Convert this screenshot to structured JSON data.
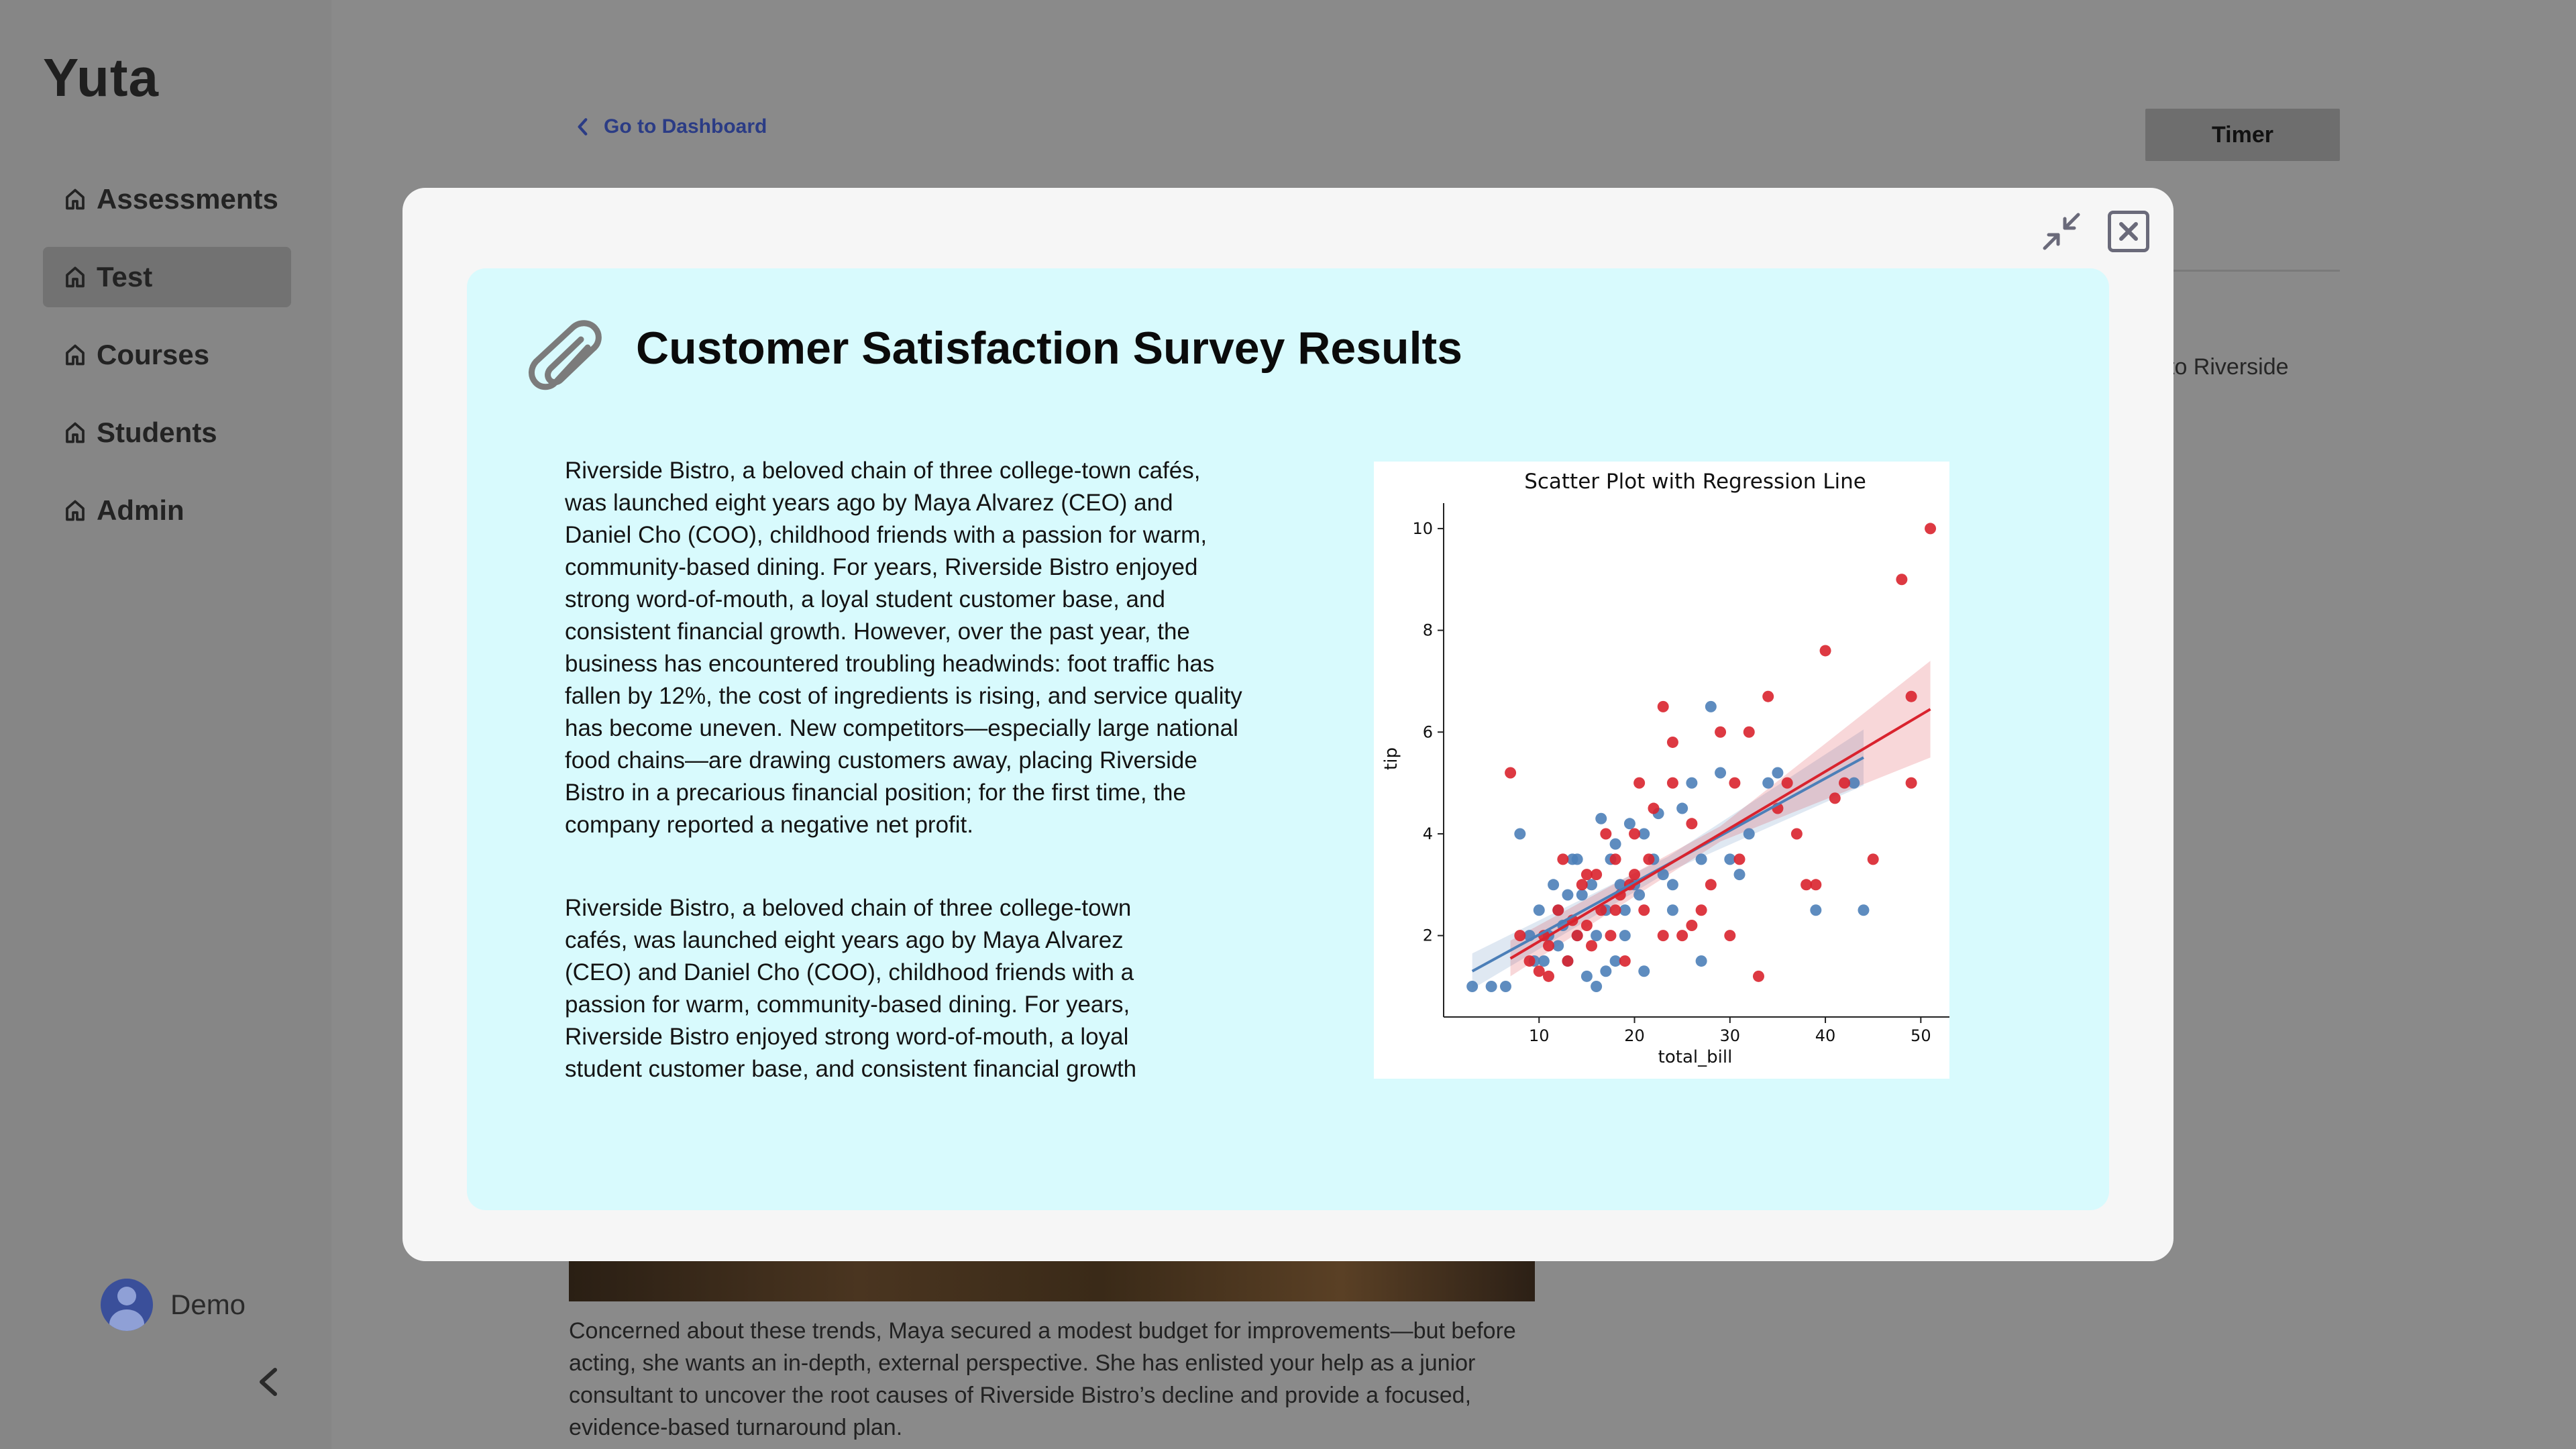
{
  "app": {
    "brand": "Yuta",
    "nav": [
      {
        "label": "Assessments",
        "active": false
      },
      {
        "label": "Test",
        "active": true
      },
      {
        "label": "Courses",
        "active": false
      },
      {
        "label": "Students",
        "active": false
      },
      {
        "label": "Admin",
        "active": false
      }
    ],
    "user_name": "Demo",
    "back_link": "Go to Dashboard",
    "timer_label": "Timer",
    "right_snippet": "to Riverside",
    "bottom_paragraph": "Concerned about these trends, Maya secured a modest budget for improvements—but before acting, she wants an in-depth, external perspective. She has enlisted your help as a junior consultant to uncover the root causes of Riverside Bistro’s decline and provide a focused, evidence-based turnaround plan."
  },
  "modal": {
    "title": "Customer Satisfaction Survey Results",
    "paragraph_1": "Riverside Bistro, a beloved chain of three college-town cafés, was launched eight years ago by Maya Alvarez (CEO) and Daniel Cho (COO), childhood friends with a passion for warm, community-based dining. For years, Riverside Bistro enjoyed strong word-of-mouth, a loyal student customer base, and consistent financial growth. However, over the past year, the business has encountered troubling headwinds: foot traffic has fallen by 12%, the cost of ingredients is rising, and service quality has become uneven. New competitors—especially large national food chains—are drawing customers away, placing Riverside Bistro in a precarious financial position; for the first time, the company reported a negative net profit.",
    "paragraph_2": "Riverside Bistro, a beloved chain of three college-town cafés, was launched eight years ago by Maya Alvarez (CEO) and Daniel Cho (COO), childhood friends with a passion for warm, community-based dining. For years, Riverside Bistro enjoyed strong word-of-mouth, a loyal student customer base, and consistent financial growth"
  },
  "colors": {
    "series_blue": "#4c7fb8",
    "series_red": "#d9232e",
    "card_bg": "#d8fafd"
  },
  "chart_data": {
    "type": "scatter",
    "title": "Scatter Plot with Regression Line",
    "xlabel": "total_bill",
    "ylabel": "tip",
    "xlim": [
      0,
      53
    ],
    "ylim": [
      0.4,
      10.5
    ],
    "xticks": [
      10,
      20,
      30,
      40,
      50
    ],
    "yticks": [
      2,
      4,
      6,
      8,
      10
    ],
    "grid": false,
    "series": [
      {
        "name": "blue",
        "points": [
          [
            3,
            1
          ],
          [
            5,
            1
          ],
          [
            6.5,
            1
          ],
          [
            8,
            4
          ],
          [
            9,
            2
          ],
          [
            10,
            2.5
          ],
          [
            10.5,
            1.5
          ],
          [
            11,
            2
          ],
          [
            11.5,
            3
          ],
          [
            12,
            1.8
          ],
          [
            12.5,
            2.2
          ],
          [
            13,
            1.5
          ],
          [
            13.5,
            3.5
          ],
          [
            14,
            2
          ],
          [
            14.5,
            2.8
          ],
          [
            15,
            1.2
          ],
          [
            15.5,
            3
          ],
          [
            16,
            2
          ],
          [
            16.5,
            4.3
          ],
          [
            17,
            2.5
          ],
          [
            17.5,
            3.5
          ],
          [
            18,
            1.5
          ],
          [
            18.5,
            3
          ],
          [
            19,
            2.5
          ],
          [
            19.5,
            4.2
          ],
          [
            20,
            3
          ],
          [
            20.5,
            2.8
          ],
          [
            21,
            4
          ],
          [
            22,
            3.5
          ],
          [
            23,
            3.2
          ],
          [
            24,
            2.5
          ],
          [
            25,
            4.5
          ],
          [
            26,
            5
          ],
          [
            27,
            3.5
          ],
          [
            28,
            6.5
          ],
          [
            29,
            5.2
          ],
          [
            30,
            3.5
          ],
          [
            31,
            3.2
          ],
          [
            32,
            4
          ],
          [
            34,
            5
          ],
          [
            35,
            5.2
          ],
          [
            39,
            2.5
          ],
          [
            44,
            2.5
          ],
          [
            43,
            5
          ],
          [
            16,
            1
          ],
          [
            21,
            1.3
          ],
          [
            18,
            3.8
          ],
          [
            24,
            3
          ],
          [
            27,
            1.5
          ],
          [
            14,
            3.5
          ],
          [
            9.5,
            1.5
          ],
          [
            13,
            2.8
          ],
          [
            19,
            2
          ],
          [
            22.5,
            4.4
          ],
          [
            12,
            2.5
          ],
          [
            17,
            1.3
          ]
        ]
      },
      {
        "name": "red",
        "points": [
          [
            7,
            5.2
          ],
          [
            8,
            2
          ],
          [
            9,
            1.5
          ],
          [
            10,
            1.3
          ],
          [
            10.5,
            2
          ],
          [
            11,
            1.8
          ],
          [
            12,
            2.5
          ],
          [
            12.5,
            3.5
          ],
          [
            13,
            1.5
          ],
          [
            14,
            2
          ],
          [
            14.5,
            3
          ],
          [
            15,
            2.2
          ],
          [
            15.5,
            1.8
          ],
          [
            16,
            3.2
          ],
          [
            16.5,
            2.5
          ],
          [
            17,
            4
          ],
          [
            17.5,
            2
          ],
          [
            18,
            3.5
          ],
          [
            18.5,
            2.8
          ],
          [
            19,
            1.5
          ],
          [
            19.5,
            3
          ],
          [
            20,
            4
          ],
          [
            20.5,
            5
          ],
          [
            21,
            2.5
          ],
          [
            21.5,
            3.5
          ],
          [
            22,
            4.5
          ],
          [
            23,
            6.5
          ],
          [
            24,
            5.8
          ],
          [
            25,
            2
          ],
          [
            26,
            4.2
          ],
          [
            27,
            2.5
          ],
          [
            28,
            3
          ],
          [
            29,
            6
          ],
          [
            30,
            2
          ],
          [
            30.5,
            5
          ],
          [
            31,
            3.5
          ],
          [
            32,
            6
          ],
          [
            33,
            1.2
          ],
          [
            34,
            6.7
          ],
          [
            35,
            4.5
          ],
          [
            36,
            5
          ],
          [
            37,
            4
          ],
          [
            38,
            3
          ],
          [
            39,
            3
          ],
          [
            40,
            7.6
          ],
          [
            41,
            4.7
          ],
          [
            42,
            5
          ],
          [
            45,
            3.5
          ],
          [
            48,
            9
          ],
          [
            49,
            5
          ],
          [
            49,
            6.7
          ],
          [
            51,
            10
          ],
          [
            23,
            2
          ],
          [
            26,
            2.2
          ],
          [
            18,
            2.5
          ],
          [
            11,
            1.2
          ],
          [
            13.5,
            2.3
          ],
          [
            20,
            3.2
          ],
          [
            15,
            3.2
          ],
          [
            24,
            5
          ]
        ]
      }
    ],
    "regression": [
      {
        "name": "blue",
        "x0": 3,
        "y0": 1.3,
        "x1": 44,
        "y1": 5.5
      },
      {
        "name": "red",
        "x0": 7,
        "y0": 1.55,
        "x1": 51,
        "y1": 6.45
      }
    ]
  }
}
